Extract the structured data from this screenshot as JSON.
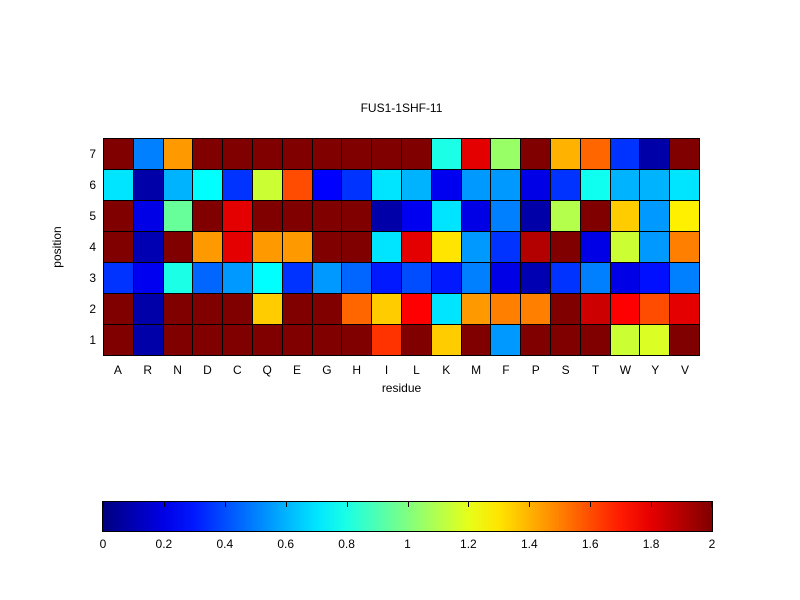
{
  "chart_data": {
    "type": "heatmap",
    "title": "FUS1-1SHF-11",
    "xlabel": "residue",
    "ylabel": "position",
    "columns": [
      "A",
      "R",
      "N",
      "D",
      "C",
      "Q",
      "E",
      "G",
      "H",
      "I",
      "L",
      "K",
      "M",
      "F",
      "P",
      "S",
      "T",
      "W",
      "Y",
      "V"
    ],
    "row_labels": [
      "7",
      "6",
      "5",
      "4",
      "3",
      "2",
      "1"
    ],
    "values_by_row_top_to_bottom": [
      [
        2.0,
        0.5,
        1.45,
        2.0,
        2.0,
        2.0,
        2.0,
        2.0,
        2.0,
        2.0,
        2.0,
        0.8,
        1.8,
        1.05,
        2.0,
        1.4,
        1.55,
        0.35,
        0.08,
        2.0
      ],
      [
        0.7,
        0.08,
        0.6,
        0.75,
        0.35,
        1.15,
        1.6,
        0.25,
        0.35,
        0.7,
        0.6,
        0.22,
        0.55,
        0.55,
        0.2,
        0.35,
        0.78,
        0.6,
        0.6,
        0.7
      ],
      [
        2.0,
        0.2,
        0.95,
        2.0,
        1.8,
        2.0,
        2.0,
        2.0,
        2.0,
        0.08,
        0.22,
        0.7,
        0.2,
        0.5,
        0.08,
        1.1,
        2.0,
        1.35,
        0.55,
        1.28
      ],
      [
        2.0,
        0.1,
        2.0,
        1.45,
        1.8,
        1.45,
        1.45,
        2.0,
        2.0,
        0.7,
        1.8,
        1.3,
        0.55,
        0.35,
        1.9,
        2.0,
        0.2,
        1.15,
        0.55,
        1.5
      ],
      [
        0.35,
        0.22,
        0.8,
        0.45,
        0.55,
        0.75,
        0.35,
        0.55,
        0.45,
        0.3,
        0.4,
        0.3,
        0.5,
        0.2,
        0.1,
        0.35,
        0.5,
        0.2,
        0.28,
        0.5
      ],
      [
        2.0,
        0.08,
        2.0,
        2.0,
        2.0,
        1.35,
        2.0,
        2.0,
        1.55,
        1.35,
        1.75,
        0.7,
        1.45,
        1.5,
        1.5,
        2.0,
        1.85,
        1.75,
        1.6,
        1.8
      ],
      [
        2.0,
        0.08,
        2.0,
        2.0,
        2.0,
        2.0,
        2.0,
        2.0,
        2.0,
        1.65,
        2.0,
        1.35,
        2.0,
        0.55,
        2.0,
        2.0,
        2.0,
        1.15,
        1.18,
        2.0
      ]
    ],
    "colormap": "jet",
    "value_range": [
      0,
      2
    ],
    "grid": true,
    "colorbar": {
      "orientation": "horizontal",
      "min": 0,
      "max": 2,
      "ticks": [
        0,
        0.2,
        0.4,
        0.6,
        0.8,
        1,
        1.2,
        1.4,
        1.6,
        1.8,
        2
      ],
      "tick_labels": [
        "0",
        "0.2",
        "0.4",
        "0.6",
        "0.8",
        "1",
        "1.2",
        "1.4",
        "1.6",
        "1.8",
        "2"
      ]
    }
  }
}
